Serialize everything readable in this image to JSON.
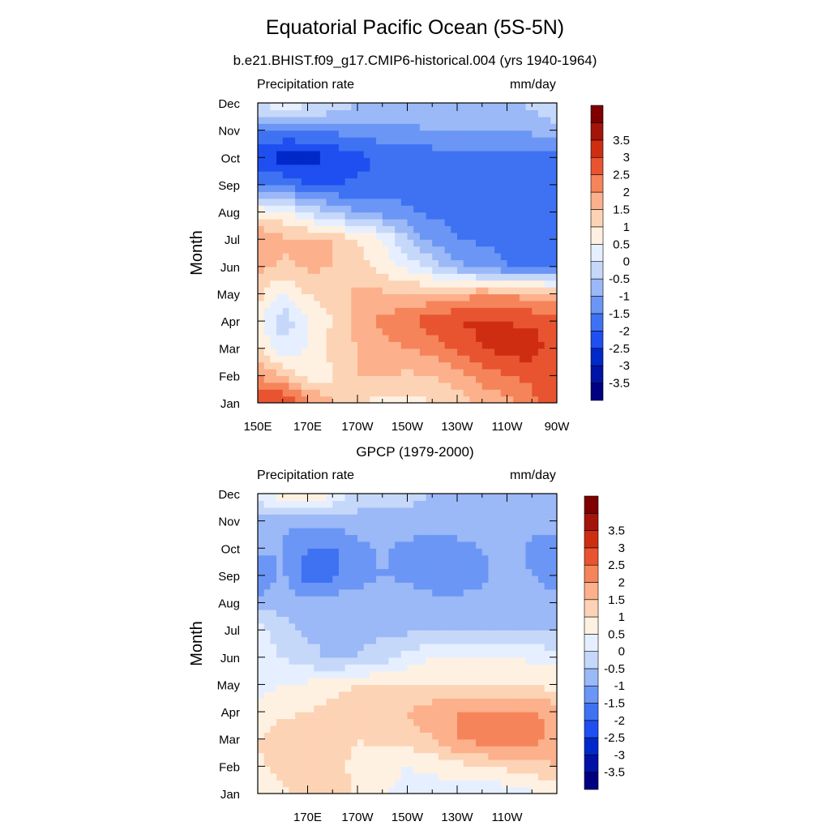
{
  "main_title": "Equatorial Pacific Ocean (5S-5N)",
  "panels": [
    {
      "subtitle": "b.e21.BHIST.f09_g17.CMIP6-historical.004 (yrs 1940-1964)",
      "left_string": "Precipitation rate",
      "right_string": "mm/day",
      "ylabel": "Month"
    },
    {
      "subtitle": "GPCP (1979-2000)",
      "left_string": "Precipitation rate",
      "right_string": "mm/day",
      "ylabel": "Month"
    }
  ],
  "colorbar": {
    "levels": [
      "-3.5",
      "-3",
      "-2.5",
      "-2",
      "-1.5",
      "-1",
      "-0.5",
      "0",
      "0.5",
      "1",
      "1.5",
      "2",
      "2.5",
      "3",
      "3.5"
    ],
    "colors": [
      "#000080",
      "#0013a6",
      "#0029c9",
      "#1f4ff0",
      "#3e72f3",
      "#6b96f5",
      "#9bb8f7",
      "#c6d8fa",
      "#e6efff",
      "#fff1e1",
      "#fdd3b5",
      "#fcb08b",
      "#f5845a",
      "#e85430",
      "#cf2d12",
      "#a3140a",
      "#7f0000"
    ]
  },
  "chart_data": [
    {
      "type": "heatmap",
      "title": "b.e21.BHIST.f09_g17.CMIP6-historical.004 (yrs 1940-1964)",
      "ylabel": "Month",
      "xticks": [
        "150E",
        "170E",
        "170W",
        "150W",
        "130W",
        "110W",
        "90W"
      ],
      "xtick_lons": [
        150,
        170,
        190,
        210,
        230,
        250,
        270
      ],
      "yticks": [
        "Jan",
        "Feb",
        "Mar",
        "Apr",
        "May",
        "Jun",
        "Jul",
        "Aug",
        "Sep",
        "Oct",
        "Nov",
        "Dec"
      ],
      "xlim": [
        150,
        270
      ],
      "x": [
        150,
        160,
        170,
        180,
        190,
        200,
        210,
        220,
        230,
        240,
        250,
        260,
        270
      ],
      "values": [
        [
          2.8,
          3.2,
          2.2,
          1.6,
          1.0,
          0.8,
          0.8,
          1.0,
          1.2,
          1.6,
          1.8,
          2.4,
          2.6
        ],
        [
          2.0,
          1.5,
          0.8,
          0.9,
          1.5,
          1.6,
          1.4,
          1.5,
          1.8,
          2.2,
          2.5,
          2.6,
          2.8
        ],
        [
          1.0,
          0.2,
          0.5,
          1.2,
          1.5,
          1.8,
          2.0,
          2.2,
          2.6,
          3.0,
          3.2,
          3.3,
          2.6
        ],
        [
          0.6,
          -0.4,
          0.5,
          1.0,
          1.8,
          2.1,
          2.4,
          2.8,
          3.0,
          3.1,
          3.0,
          2.9,
          2.8
        ],
        [
          1.2,
          0.4,
          1.0,
          1.2,
          1.6,
          1.6,
          1.5,
          1.6,
          1.8,
          1.9,
          1.9,
          1.8,
          1.7
        ],
        [
          1.6,
          1.4,
          1.6,
          1.5,
          1.2,
          0.8,
          0.4,
          -0.2,
          -0.8,
          -1.2,
          -1.5,
          -1.6,
          -1.6
        ],
        [
          2.0,
          1.6,
          1.6,
          1.5,
          1.0,
          0.6,
          -0.5,
          -1.2,
          -1.5,
          -1.6,
          -1.6,
          -1.6,
          -1.6
        ],
        [
          0.8,
          0.6,
          0.0,
          -0.6,
          -1.0,
          -1.2,
          -1.4,
          -1.6,
          -1.6,
          -1.6,
          -1.6,
          -1.6,
          -1.6
        ],
        [
          -1.4,
          -1.6,
          -2.0,
          -2.0,
          -1.9,
          -1.8,
          -1.7,
          -1.7,
          -1.7,
          -1.7,
          -1.7,
          -1.7,
          -1.7
        ],
        [
          -2.4,
          -2.7,
          -2.8,
          -2.4,
          -2.2,
          -1.9,
          -1.8,
          -1.8,
          -1.8,
          -1.8,
          -1.8,
          -1.8,
          -1.8
        ],
        [
          -1.4,
          -1.6,
          -1.5,
          -1.4,
          -1.3,
          -1.2,
          -1.1,
          -1.0,
          -1.0,
          -1.0,
          -1.0,
          -0.9,
          -0.6
        ],
        [
          0.1,
          0.3,
          0.2,
          0.0,
          -0.5,
          -0.5,
          -0.6,
          -0.7,
          -0.8,
          -0.8,
          -0.6,
          -0.4,
          -0.2
        ]
      ]
    },
    {
      "type": "heatmap",
      "title": "GPCP (1979-2000)",
      "ylabel": "Month",
      "xticks": [
        "170E",
        "170W",
        "150W",
        "130W",
        "110W"
      ],
      "xtick_lons": [
        170,
        190,
        210,
        230,
        250
      ],
      "yticks": [
        "Jan",
        "Feb",
        "Mar",
        "Apr",
        "May",
        "Jun",
        "Jul",
        "Aug",
        "Sep",
        "Oct",
        "Nov",
        "Dec"
      ],
      "xlim": [
        150,
        270
      ],
      "x": [
        150,
        160,
        170,
        180,
        190,
        200,
        210,
        220,
        230,
        240,
        250,
        260,
        270
      ],
      "values": [
        [
          0.4,
          0.8,
          1.2,
          1.5,
          0.9,
          0.5,
          0.4,
          0.3,
          0.2,
          0.0,
          0.2,
          0.4,
          0.4
        ],
        [
          0.9,
          1.3,
          1.5,
          1.2,
          0.8,
          0.6,
          0.5,
          0.6,
          0.8,
          1.0,
          1.1,
          1.3,
          1.5
        ],
        [
          1.0,
          1.4,
          1.2,
          1.4,
          1.0,
          1.2,
          1.2,
          1.5,
          2.0,
          2.2,
          2.4,
          2.2,
          1.8
        ],
        [
          0.6,
          0.9,
          1.0,
          1.2,
          1.3,
          1.2,
          1.5,
          1.8,
          2.0,
          2.1,
          2.0,
          2.1,
          1.8
        ],
        [
          0.3,
          0.5,
          0.6,
          0.8,
          1.0,
          1.1,
          1.0,
          1.0,
          1.0,
          1.0,
          1.0,
          0.9,
          0.8
        ],
        [
          0.3,
          0.0,
          -0.3,
          -0.6,
          -0.5,
          -0.3,
          0.2,
          0.5,
          0.6,
          0.6,
          0.5,
          0.4,
          0.3
        ],
        [
          0.4,
          -0.4,
          -0.6,
          -0.6,
          -0.6,
          -0.6,
          -0.6,
          -0.6,
          -0.6,
          -0.6,
          -0.6,
          -0.6,
          -0.6
        ],
        [
          -0.8,
          -0.6,
          -0.8,
          -0.7,
          -0.6,
          -0.6,
          -0.7,
          -0.9,
          -0.9,
          -0.8,
          -0.7,
          -0.8,
          -0.9
        ],
        [
          -1.6,
          -0.9,
          -1.8,
          -1.6,
          -1.3,
          -1.0,
          -1.1,
          -1.2,
          -1.3,
          -1.1,
          -0.8,
          -1.0,
          -1.2
        ],
        [
          -0.9,
          -1.0,
          -1.5,
          -1.6,
          -1.2,
          -0.9,
          -1.2,
          -1.3,
          -1.2,
          -1.0,
          -0.8,
          -1.1,
          -1.3
        ],
        [
          -0.6,
          -0.9,
          -0.9,
          -0.8,
          -0.7,
          -0.6,
          -0.6,
          -0.7,
          -0.7,
          -0.6,
          -0.6,
          -0.8,
          -0.8
        ],
        [
          0.3,
          0.8,
          1.2,
          0.4,
          -0.2,
          -0.4,
          -0.4,
          -0.5,
          -0.5,
          -0.5,
          -0.5,
          -0.5,
          -0.5
        ]
      ]
    }
  ]
}
